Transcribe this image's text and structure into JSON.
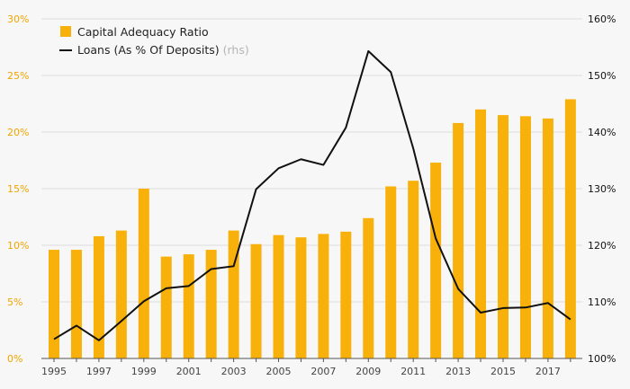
{
  "chart_data": {
    "type": "bar+line",
    "x": [
      1995,
      1996,
      1997,
      1998,
      1999,
      2000,
      2001,
      2002,
      2003,
      2004,
      2005,
      2006,
      2007,
      2008,
      2009,
      2010,
      2011,
      2012,
      2013,
      2014,
      2015,
      2016,
      2017,
      2018
    ],
    "x_tick_labels": [
      "1995",
      "1997",
      "1999",
      "2001",
      "2003",
      "2005",
      "2007",
      "2009",
      "2011",
      "2013",
      "2015",
      "2017"
    ],
    "series": [
      {
        "name": "Capital Adequacy Ratio",
        "type": "bar",
        "axis": "left",
        "color": "#f7b10a",
        "values": [
          9.6,
          9.6,
          10.8,
          11.3,
          15.0,
          9.0,
          9.2,
          9.6,
          11.3,
          10.1,
          10.9,
          10.7,
          11.0,
          11.2,
          12.4,
          15.2,
          15.7,
          17.3,
          20.8,
          22.0,
          21.5,
          21.4,
          21.2,
          22.9
        ]
      },
      {
        "name": "Loans (As % Of Deposits)",
        "name_suffix": "(rhs)",
        "type": "line",
        "axis": "right",
        "color": "#111111",
        "values": [
          103.4,
          105.8,
          103.2,
          106.6,
          110.1,
          112.4,
          112.8,
          115.8,
          116.3,
          129.9,
          133.6,
          135.2,
          134.2,
          140.8,
          154.3,
          150.6,
          137.1,
          121.2,
          112.3,
          108.1,
          108.9,
          109.0,
          109.8,
          106.9
        ]
      }
    ],
    "left_axis": {
      "range": [
        0,
        30
      ],
      "ticks": [
        "0%",
        "5%",
        "10%",
        "15%",
        "20%",
        "25%",
        "30%"
      ],
      "color": "#f0a500"
    },
    "right_axis": {
      "range": [
        100,
        160
      ],
      "ticks": [
        "100%",
        "110%",
        "120%",
        "130%",
        "140%",
        "150%",
        "160%"
      ],
      "color": "#111111"
    },
    "grid": true,
    "legend_position": "top-left"
  }
}
